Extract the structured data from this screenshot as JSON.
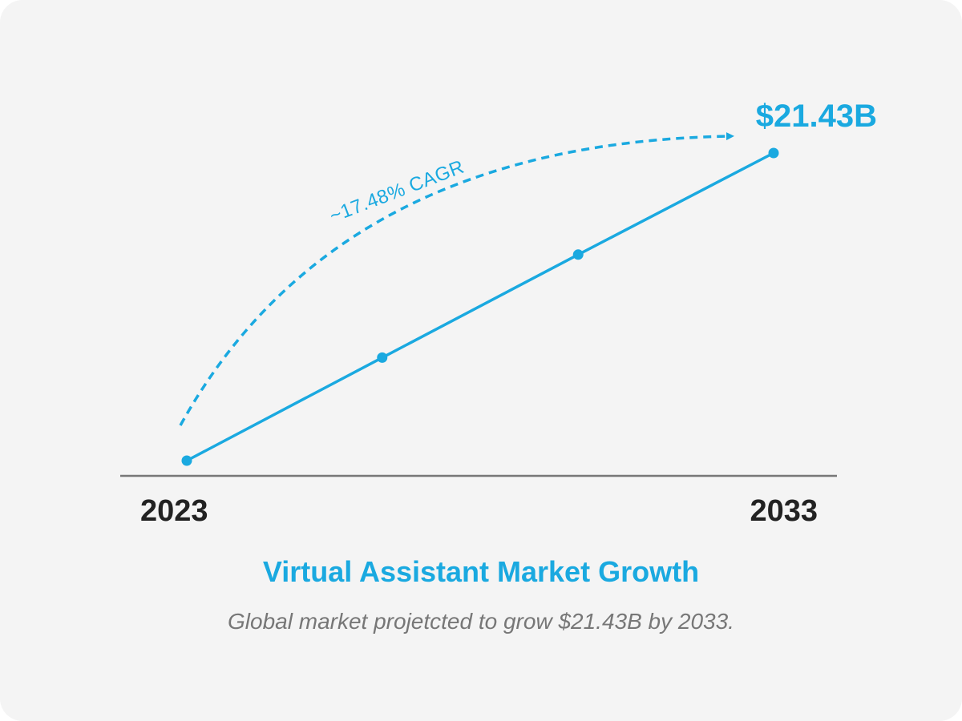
{
  "colors": {
    "accent": "#1aa9e0",
    "axis": "#777777",
    "text_dark": "#222222",
    "subtitle": "#777777",
    "background": "#f4f4f4"
  },
  "chart_data": {
    "type": "line",
    "x": [
      2023,
      2026.33,
      2029.67,
      2033
    ],
    "series": [
      {
        "values": [
          6.5,
          11.5,
          16.5,
          21.43
        ]
      }
    ],
    "tick_labels": [
      "2023",
      "2033"
    ],
    "end_value_label": "$21.43B",
    "annotation": "~17.48% CAGR",
    "title": "Virtual Assistant Market Growth",
    "subtitle": "Global market projetcted to grow $21.43B by 2033.",
    "xlim": [
      2023,
      2033
    ],
    "ylim": [
      6.5,
      21.43
    ],
    "grid": false,
    "legend": "none"
  }
}
